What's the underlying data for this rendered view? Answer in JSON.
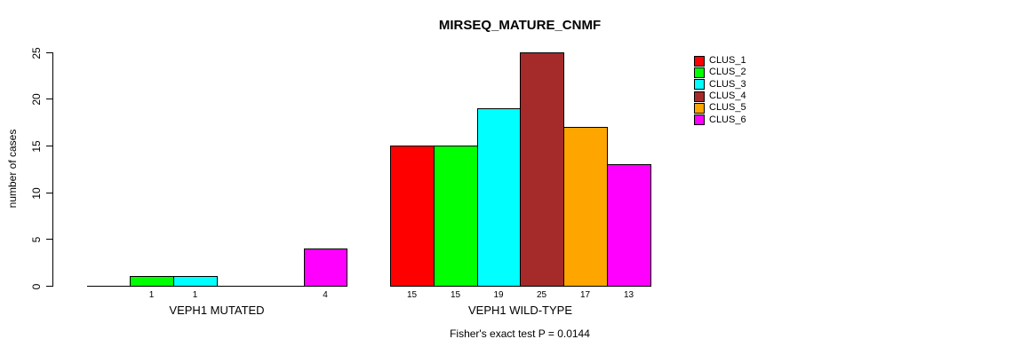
{
  "chart_data": {
    "type": "bar",
    "title": "MIRSEQ_MATURE_CNMF",
    "ylabel": "number of cases",
    "xlabel": "",
    "ylim": [
      0,
      25
    ],
    "yticks": [
      0,
      5,
      10,
      15,
      20,
      25
    ],
    "grid": false,
    "bar_border_color": "#000000",
    "series_colors": [
      "#ff0000",
      "#00ff00",
      "#00ffff",
      "#a52a2a",
      "#ffa500",
      "#ff00ff"
    ],
    "legend": {
      "position": "right",
      "entries": [
        {
          "label": "CLUS_1",
          "color": "#ff0000"
        },
        {
          "label": "CLUS_2",
          "color": "#00ff00"
        },
        {
          "label": "CLUS_3",
          "color": "#00ffff"
        },
        {
          "label": "CLUS_4",
          "color": "#a52a2a"
        },
        {
          "label": "CLUS_5",
          "color": "#ffa500"
        },
        {
          "label": "CLUS_6",
          "color": "#ff00ff"
        }
      ]
    },
    "groups": [
      {
        "label": "VEPH1 MUTATED",
        "values": [
          0,
          1,
          1,
          0,
          0,
          4
        ]
      },
      {
        "label": "VEPH1 WILD-TYPE",
        "values": [
          15,
          15,
          19,
          25,
          17,
          13
        ]
      }
    ],
    "value_labels": [
      [
        "",
        "1",
        "1",
        "",
        "",
        "4"
      ],
      [
        "15",
        "15",
        "19",
        "25",
        "17",
        "13"
      ]
    ],
    "annotation": "Fisher's exact test P = 0.0144"
  }
}
